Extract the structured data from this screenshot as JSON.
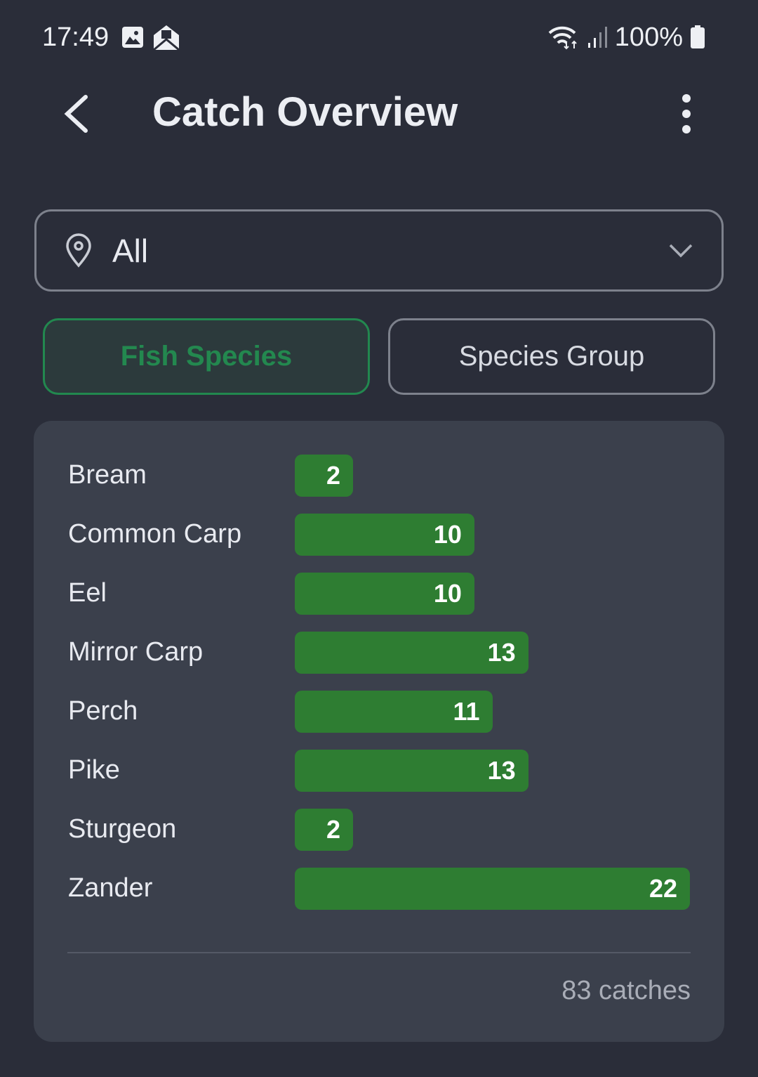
{
  "status_bar": {
    "time": "17:49",
    "battery": "100%",
    "icons": [
      "image-icon",
      "mail-icon",
      "wifi-icon",
      "signal-icon",
      "battery-icon"
    ]
  },
  "header": {
    "title": "Catch Overview"
  },
  "location_filter": {
    "value": "All",
    "icon": "location-pin-icon"
  },
  "tabs": [
    {
      "label": "Fish Species",
      "active": true
    },
    {
      "label": "Species Group",
      "active": false
    }
  ],
  "colors": {
    "bar": "#2e7d32",
    "accent": "#22884f",
    "background": "#2a2d39",
    "card": "#3b404c"
  },
  "chart_data": {
    "type": "bar",
    "orientation": "horizontal",
    "categories": [
      "Bream",
      "Common Carp",
      "Eel",
      "Mirror Carp",
      "Perch",
      "Pike",
      "Sturgeon",
      "Zander"
    ],
    "values": [
      2,
      10,
      10,
      13,
      11,
      13,
      2,
      22
    ]
  },
  "summary": {
    "total": "83 catches"
  }
}
